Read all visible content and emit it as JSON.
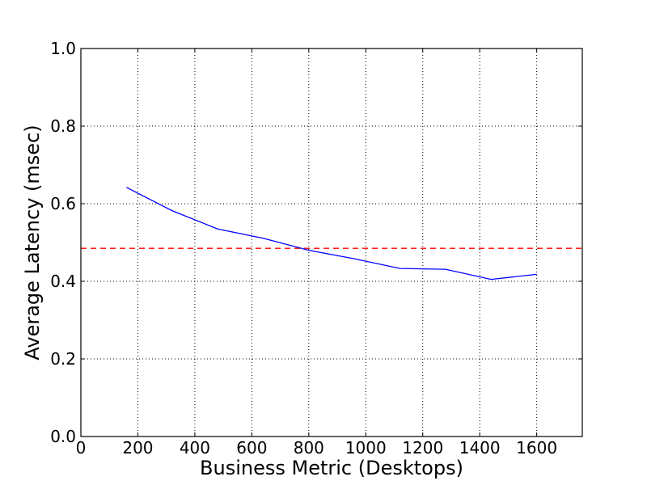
{
  "chart_data": {
    "type": "line",
    "title": "",
    "xlabel": "Business Metric (Desktops)",
    "ylabel": "Average Latency (msec)",
    "xlim": [
      0,
      1760
    ],
    "ylim": [
      0.0,
      1.0
    ],
    "xticks": [
      0,
      200,
      400,
      600,
      800,
      1000,
      1200,
      1400,
      1600
    ],
    "xtick_labels": [
      "0",
      "200",
      "400",
      "600",
      "800",
      "1000",
      "1200",
      "1400",
      "1600"
    ],
    "yticks": [
      0.0,
      0.2,
      0.4,
      0.6,
      0.8,
      1.0
    ],
    "ytick_labels": [
      "0.0",
      "0.2",
      "0.4",
      "0.6",
      "0.8",
      "1.0"
    ],
    "grid": true,
    "grid_style": "dotted",
    "series": [
      {
        "color": "#0000ff",
        "line_style": "solid",
        "x": [
          160,
          320,
          480,
          640,
          800,
          960,
          1120,
          1280,
          1440,
          1600
        ],
        "y": [
          0.642,
          0.582,
          0.535,
          0.511,
          0.48,
          0.458,
          0.433,
          0.431,
          0.405,
          0.418
        ]
      }
    ],
    "reference_lines": [
      {
        "orientation": "horizontal",
        "y": 0.485,
        "color": "#ff0000",
        "line_style": "dashed"
      }
    ]
  }
}
